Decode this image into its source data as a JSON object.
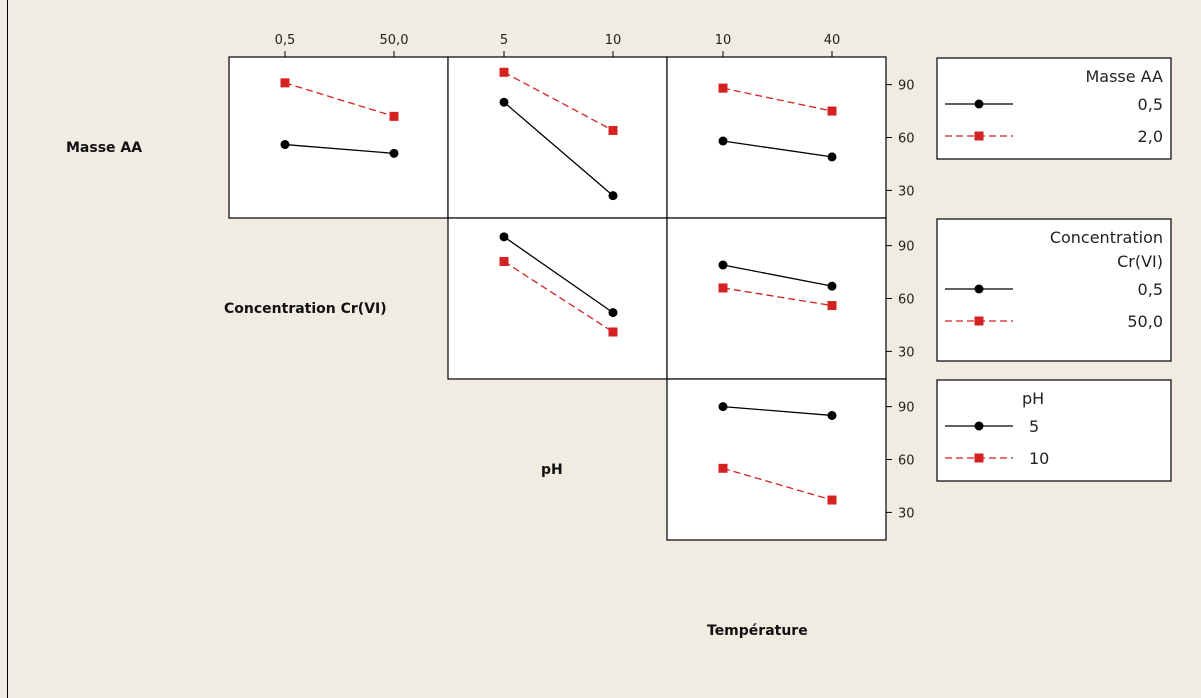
{
  "row_labels": [
    "Masse AA",
    "Concentration Cr(VI)",
    "pH"
  ],
  "column_label_bottom": "Température",
  "colors": {
    "level1": "#000000",
    "level2": "#d42222",
    "background": "#f0ece2"
  },
  "chart_data": {
    "type": "line",
    "kind": "interaction-plot-matrix",
    "y_ticks": [
      30,
      60,
      90
    ],
    "ylim": [
      20,
      100
    ],
    "columns": [
      {
        "factor": "Concentration Cr(VI)",
        "levels": [
          "0,5",
          "50,0"
        ]
      },
      {
        "factor": "pH",
        "levels": [
          "5",
          "10"
        ]
      },
      {
        "factor": "Température",
        "levels": [
          "10",
          "40"
        ]
      }
    ],
    "legends": [
      {
        "title_lines": [
          "Masse AA"
        ],
        "entries": [
          "0,5",
          "2,0"
        ]
      },
      {
        "title_lines": [
          "Concentration",
          "Cr(VI)"
        ],
        "entries": [
          "0,5",
          "50,0"
        ]
      },
      {
        "title_lines": [
          "pH"
        ],
        "entries": [
          "5",
          "10"
        ]
      }
    ],
    "panels": [
      {
        "row": 0,
        "col": 0,
        "series": [
          {
            "level": "0,5",
            "values": [
              56,
              51
            ]
          },
          {
            "level": "2,0",
            "values": [
              91,
              72
            ]
          }
        ]
      },
      {
        "row": 0,
        "col": 1,
        "series": [
          {
            "level": "0,5",
            "values": [
              80,
              27
            ]
          },
          {
            "level": "2,0",
            "values": [
              97,
              64
            ]
          }
        ]
      },
      {
        "row": 0,
        "col": 2,
        "series": [
          {
            "level": "0,5",
            "values": [
              58,
              49
            ]
          },
          {
            "level": "2,0",
            "values": [
              88,
              75
            ]
          }
        ]
      },
      {
        "row": 1,
        "col": 1,
        "series": [
          {
            "level": "0,5",
            "values": [
              95,
              52
            ]
          },
          {
            "level": "50,0",
            "values": [
              81,
              41
            ]
          }
        ]
      },
      {
        "row": 1,
        "col": 2,
        "series": [
          {
            "level": "0,5",
            "values": [
              79,
              67
            ]
          },
          {
            "level": "50,0",
            "values": [
              66,
              56
            ]
          }
        ]
      },
      {
        "row": 2,
        "col": 2,
        "series": [
          {
            "level": "5",
            "values": [
              90,
              85
            ]
          },
          {
            "level": "10",
            "values": [
              55,
              37
            ]
          }
        ]
      }
    ]
  }
}
